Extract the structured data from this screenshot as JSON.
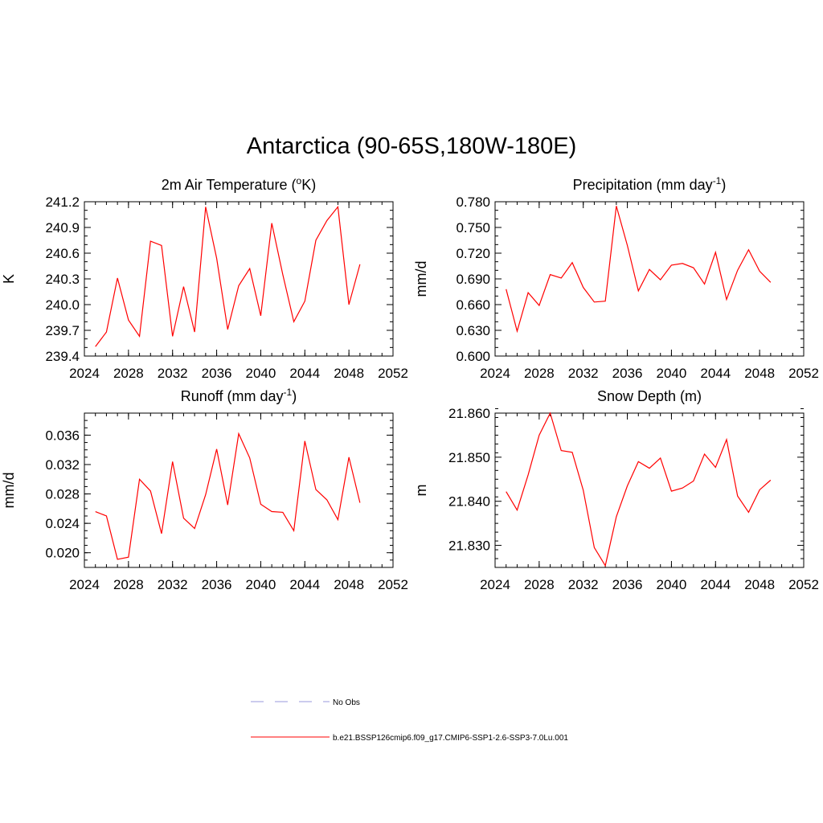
{
  "title": "Antarctica (90-65S,180W-180E)",
  "colors": {
    "model_line": "#ff0000",
    "obs_line": "#9999dd",
    "axis": "#000000"
  },
  "legend": [
    {
      "label": "No Obs",
      "style": "dashed",
      "color": "#9999dd"
    },
    {
      "label": "b.e21.BSSP126cmip6.f09_g17.CMIP6-SSP1-2.6-SSP3-7.0Lu.001",
      "style": "solid",
      "color": "#ff0000"
    }
  ],
  "chart_data": [
    {
      "type": "line",
      "title": "2m Air Temperature (°K)",
      "title_parts": {
        "pre": "2m Air Temperature (",
        "sup": "o",
        "post": "K)"
      },
      "ylabel": "K",
      "xlim": [
        2024,
        2052
      ],
      "ylim": [
        239.4,
        241.2
      ],
      "xticks": [
        2024,
        2028,
        2032,
        2036,
        2040,
        2044,
        2048,
        2052
      ],
      "yticks": [
        239.4,
        239.7,
        240.0,
        240.3,
        240.6,
        240.9,
        241.2
      ],
      "yminor": 0.1,
      "ydecimals": 1,
      "x": [
        2025,
        2026,
        2027,
        2028,
        2029,
        2030,
        2031,
        2032,
        2033,
        2034,
        2035,
        2036,
        2037,
        2038,
        2039,
        2040,
        2041,
        2042,
        2043,
        2044,
        2045,
        2046,
        2047,
        2048,
        2049
      ],
      "series": [
        {
          "values": [
            239.51,
            239.68,
            240.31,
            239.82,
            239.63,
            240.74,
            240.69,
            239.63,
            240.21,
            239.68,
            241.14,
            240.54,
            239.71,
            240.22,
            240.42,
            239.87,
            240.95,
            240.35,
            239.8,
            240.04,
            240.75,
            240.98,
            241.14,
            240.0,
            240.47
          ]
        }
      ]
    },
    {
      "type": "line",
      "title": "Precipitation (mm day-1)",
      "title_parts": {
        "pre": "Precipitation (mm day",
        "sup": "-1",
        "post": ")"
      },
      "ylabel": "mm/d",
      "xlim": [
        2024,
        2052
      ],
      "ylim": [
        0.6,
        0.78
      ],
      "xticks": [
        2024,
        2028,
        2032,
        2036,
        2040,
        2044,
        2048,
        2052
      ],
      "yticks": [
        0.6,
        0.63,
        0.66,
        0.69,
        0.72,
        0.75,
        0.78
      ],
      "yminor": 0.01,
      "ydecimals": 3,
      "x": [
        2025,
        2026,
        2027,
        2028,
        2029,
        2030,
        2031,
        2032,
        2033,
        2034,
        2035,
        2036,
        2037,
        2038,
        2039,
        2040,
        2041,
        2042,
        2043,
        2044,
        2045,
        2046,
        2047,
        2048,
        2049
      ],
      "series": [
        {
          "values": [
            0.678,
            0.629,
            0.674,
            0.659,
            0.695,
            0.691,
            0.709,
            0.68,
            0.663,
            0.664,
            0.775,
            0.729,
            0.676,
            0.701,
            0.689,
            0.706,
            0.708,
            0.703,
            0.684,
            0.721,
            0.666,
            0.7,
            0.724,
            0.699,
            0.686
          ]
        }
      ]
    },
    {
      "type": "line",
      "title": "Runoff (mm day-1)",
      "title_parts": {
        "pre": "Runoff (mm day",
        "sup": "-1",
        "post": ")"
      },
      "ylabel": "mm/d",
      "xlim": [
        2024,
        2052
      ],
      "ylim": [
        0.018,
        0.039
      ],
      "xticks": [
        2024,
        2028,
        2032,
        2036,
        2040,
        2044,
        2048,
        2052
      ],
      "yticks": [
        0.02,
        0.024,
        0.028,
        0.032,
        0.036
      ],
      "yminor": 0.001,
      "ydecimals": 3,
      "x": [
        2025,
        2026,
        2027,
        2028,
        2029,
        2030,
        2031,
        2032,
        2033,
        2034,
        2035,
        2036,
        2037,
        2038,
        2039,
        2040,
        2041,
        2042,
        2043,
        2044,
        2045,
        2046,
        2047,
        2048,
        2049
      ],
      "series": [
        {
          "values": [
            0.0256,
            0.025,
            0.0191,
            0.0194,
            0.03,
            0.0284,
            0.0226,
            0.0324,
            0.0247,
            0.0233,
            0.0279,
            0.0341,
            0.0265,
            0.0362,
            0.0329,
            0.0266,
            0.0256,
            0.0255,
            0.023,
            0.0352,
            0.0286,
            0.0272,
            0.0245,
            0.033,
            0.0268
          ]
        }
      ]
    },
    {
      "type": "line",
      "title": "Snow Depth (m)",
      "title_parts": {
        "pre": "Snow Depth (m)",
        "sup": "",
        "post": ""
      },
      "ylabel": "m",
      "xlim": [
        2024,
        2052
      ],
      "ylim": [
        21.825,
        21.86
      ],
      "xticks": [
        2024,
        2028,
        2032,
        2036,
        2040,
        2044,
        2048,
        2052
      ],
      "yticks": [
        21.83,
        21.84,
        21.85,
        21.86
      ],
      "yminor": 0.002,
      "ydecimals": 3,
      "x": [
        2025,
        2026,
        2027,
        2028,
        2029,
        2030,
        2031,
        2032,
        2033,
        2034,
        2035,
        2036,
        2037,
        2038,
        2039,
        2040,
        2041,
        2042,
        2043,
        2044,
        2045,
        2046,
        2047,
        2048,
        2049
      ],
      "series": [
        {
          "values": [
            21.8422,
            21.838,
            21.846,
            21.855,
            21.86,
            21.8515,
            21.8511,
            21.8425,
            21.8295,
            21.8254,
            21.8365,
            21.8435,
            21.849,
            21.8475,
            21.8498,
            21.8423,
            21.843,
            21.8446,
            21.8507,
            21.8477,
            21.854,
            21.8412,
            21.8375,
            21.8426,
            21.8448
          ]
        }
      ]
    }
  ]
}
